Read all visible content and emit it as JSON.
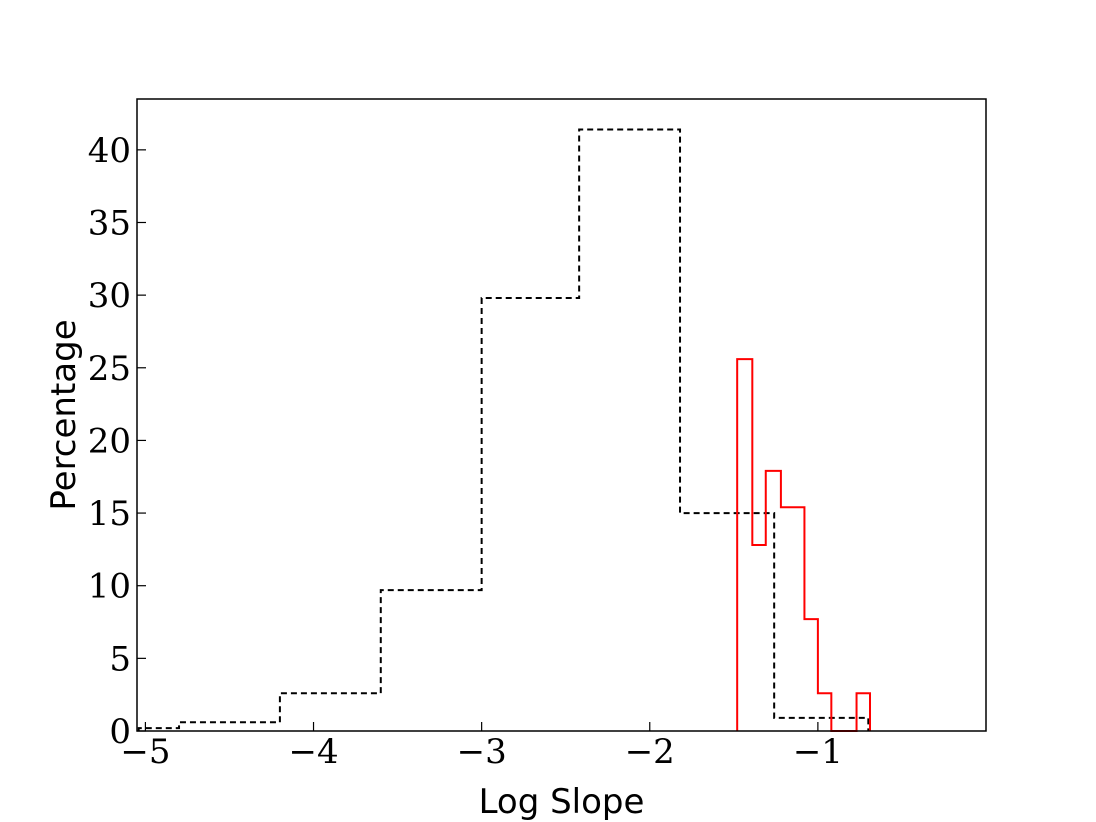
{
  "chart_data": {
    "type": "histogram",
    "xlabel": "Log Slope",
    "ylabel": "Percentage",
    "xlim": [
      -5.05,
      0.0
    ],
    "ylim": [
      0,
      43.5
    ],
    "x_ticks": [
      -5,
      -4,
      -3,
      -2,
      -1
    ],
    "x_tick_labels": [
      "−5",
      "−4",
      "−3",
      "−2",
      "−1"
    ],
    "y_ticks": [
      0,
      5,
      10,
      15,
      20,
      25,
      30,
      35,
      40
    ],
    "y_tick_labels": [
      "0",
      "5",
      "10",
      "15",
      "20",
      "25",
      "30",
      "35",
      "40"
    ],
    "grid": false,
    "legend": false,
    "series": [
      {
        "style": "dashed",
        "color": "#000000",
        "bin_edges": [
          -5.04,
          -4.8,
          -4.2,
          -3.6,
          -3.0,
          -2.42,
          -1.82,
          -1.26,
          -0.7
        ],
        "values": [
          0.2,
          0.6,
          2.6,
          9.7,
          29.8,
          41.4,
          15.0,
          0.9
        ]
      },
      {
        "style": "solid",
        "color": "#ff0000",
        "bin_edges": [
          -1.48,
          -1.39,
          -1.31,
          -1.22,
          -1.08,
          -1.0,
          -0.92,
          -0.84,
          -0.77,
          -0.69
        ],
        "values": [
          25.6,
          12.8,
          17.9,
          15.4,
          7.7,
          2.6,
          0,
          0,
          2.6
        ]
      }
    ]
  }
}
